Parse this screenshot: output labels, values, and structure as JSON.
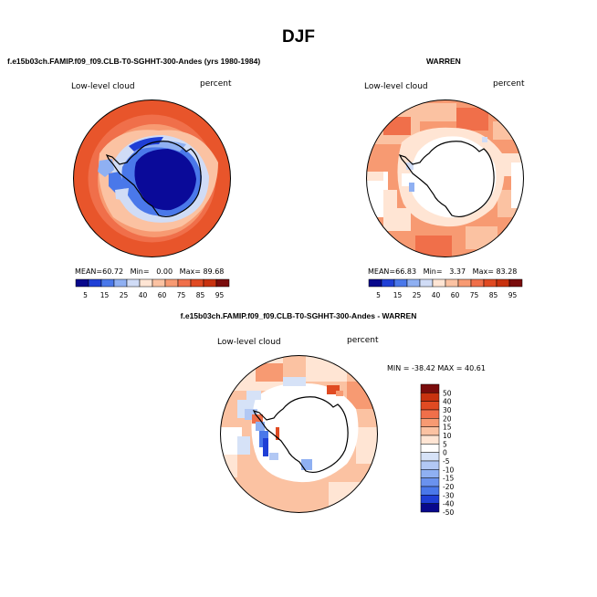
{
  "title": "DJF",
  "panels": [
    {
      "title": "f.e15b03ch.FAMIP.f09_f09.CLB-T0-SGHHT-300-Andes (yrs 1980-1984)",
      "left_label": "Low-level cloud",
      "right_label": "percent",
      "stats": {
        "mean_label": "MEAN=",
        "mean": "60.72",
        "min_label": "Min=",
        "min": "0.00",
        "max_label": "Max=",
        "max": "89.68"
      }
    },
    {
      "title": "WARREN",
      "left_label": "Low-level cloud",
      "right_label": "percent",
      "stats": {
        "mean_label": "MEAN=",
        "mean": "66.83",
        "min_label": "Min=",
        "min": "3.37",
        "max_label": "Max=",
        "max": "83.28"
      }
    },
    {
      "title": "f.e15b03ch.FAMIP.f09_f09.CLB-T0-SGHHT-300-Andes - WARREN",
      "left_label": "Low-level cloud",
      "right_label": "percent",
      "minmax_text": "MIN = -38.42 MAX =  40.61"
    }
  ],
  "colorbar_abs": {
    "labels": [
      "5",
      "15",
      "25",
      "40",
      "60",
      "75",
      "85",
      "95"
    ],
    "colors": [
      "#08088c",
      "#1f3fd6",
      "#4a78ea",
      "#8fb0f2",
      "#d0dcf6",
      "#ffe5d4",
      "#fbc2a2",
      "#f79a72",
      "#f06f4a",
      "#e04a22",
      "#c8320f",
      "#7a0c0c"
    ]
  },
  "colorbar_diff": {
    "labels": [
      "50",
      "40",
      "30",
      "20",
      "15",
      "10",
      "5",
      "0",
      "-5",
      "-10",
      "-15",
      "-20",
      "-30",
      "-40",
      "-50"
    ],
    "colors": [
      "#7a0c0c",
      "#c8320f",
      "#e04a22",
      "#f06f4a",
      "#f79a72",
      "#fbc2a2",
      "#ffe5d4",
      "#ffffff",
      "#d6e2f7",
      "#b2c8f4",
      "#8fb0f2",
      "#6a92ee",
      "#4a78ea",
      "#1f3fd6",
      "#08088c"
    ]
  }
}
